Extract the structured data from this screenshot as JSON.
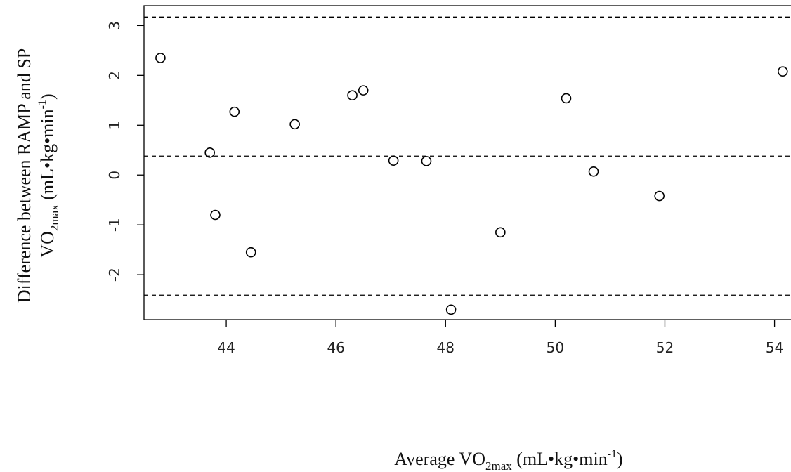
{
  "chart_data": {
    "type": "scatter",
    "title": "",
    "xlabel": {
      "pre": "Average VO",
      "sub": "2max",
      "mid": " (mL•kg•min",
      "sup": "-1",
      "post": ")"
    },
    "ylabel": {
      "line1": "Difference between RAMP and SP",
      "line2": {
        "pre": "VO",
        "sub": "2max",
        "mid": " (mL•kg•min",
        "sup": "-1",
        "post": ")"
      }
    },
    "xlim": [
      42.5,
      54.3
    ],
    "ylim": [
      -2.9,
      3.4
    ],
    "x_ticks": [
      44,
      46,
      48,
      50,
      52,
      54
    ],
    "x_tick_labels": [
      "44",
      "46",
      "48",
      "50",
      "52",
      "54"
    ],
    "y_ticks": [
      -2,
      -1,
      0,
      1,
      2,
      3
    ],
    "y_tick_labels": [
      "-2",
      "-1",
      "0",
      "1",
      "2",
      "3"
    ],
    "reference_lines": [
      3.17,
      0.38,
      -2.41
    ],
    "grid": false,
    "marker": "open-circle",
    "line_color": "#000000",
    "points": [
      {
        "x": 42.8,
        "y": 2.35
      },
      {
        "x": 43.7,
        "y": 0.45
      },
      {
        "x": 43.8,
        "y": -0.8
      },
      {
        "x": 44.15,
        "y": 1.27
      },
      {
        "x": 44.45,
        "y": -1.55
      },
      {
        "x": 45.25,
        "y": 1.02
      },
      {
        "x": 46.3,
        "y": 1.6
      },
      {
        "x": 46.5,
        "y": 1.7
      },
      {
        "x": 47.05,
        "y": 0.29
      },
      {
        "x": 47.65,
        "y": 0.28
      },
      {
        "x": 48.1,
        "y": -2.7
      },
      {
        "x": 49.0,
        "y": -1.15
      },
      {
        "x": 50.2,
        "y": 1.54
      },
      {
        "x": 50.7,
        "y": 0.07
      },
      {
        "x": 51.9,
        "y": -0.42
      },
      {
        "x": 54.15,
        "y": 2.08
      }
    ]
  }
}
